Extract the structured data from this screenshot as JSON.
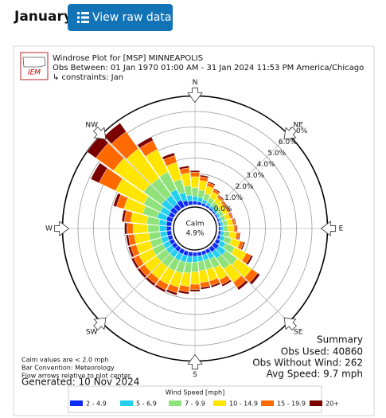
{
  "page": {
    "heading": "January",
    "button": "View raw data"
  },
  "chart_data": {
    "type": "windrose",
    "logo": "IEM",
    "title": "Windrose Plot for [MSP] MINNEAPOLIS",
    "subtitle": "Obs Between: 01 Jan 1970 01:00 AM - 31 Jan 2024 11:53 PM America/Chicago",
    "constraints": "↳ constraints: Jan",
    "compass": [
      "N",
      "NE",
      "E",
      "SE",
      "S",
      "SW",
      "W",
      "NW"
    ],
    "calm": {
      "label": "Calm",
      "value": 4.9,
      "value_label": "4.9%"
    },
    "rlim": [
      0,
      7
    ],
    "rticks": [
      {
        "value": 0,
        "label": "0.0%"
      },
      {
        "value": 1,
        "label": "1.0%"
      },
      {
        "value": 2,
        "label": "2.0%"
      },
      {
        "value": 3,
        "label": "3.0%"
      },
      {
        "value": 4,
        "label": "4.0%"
      },
      {
        "value": 5,
        "label": "5.0%"
      },
      {
        "value": 6,
        "label": "6.0%"
      },
      {
        "value": 7,
        "label": "7.0%"
      }
    ],
    "directions": [
      0,
      10,
      20,
      30,
      40,
      50,
      60,
      70,
      80,
      90,
      100,
      110,
      120,
      130,
      140,
      150,
      160,
      170,
      180,
      190,
      200,
      210,
      220,
      230,
      240,
      250,
      260,
      270,
      280,
      290,
      300,
      310,
      320,
      330,
      340,
      350
    ],
    "series": [
      {
        "name": "2 - 4.9",
        "color": "#0d2bf5",
        "values": [
          0.22,
          0.19,
          0.16,
          0.13,
          0.11,
          0.1,
          0.1,
          0.1,
          0.11,
          0.12,
          0.14,
          0.18,
          0.26,
          0.36,
          0.33,
          0.26,
          0.24,
          0.24,
          0.25,
          0.27,
          0.29,
          0.3,
          0.3,
          0.3,
          0.3,
          0.29,
          0.29,
          0.3,
          0.32,
          0.39,
          0.35,
          0.42,
          0.41,
          0.5,
          0.35,
          0.25
        ]
      },
      {
        "name": "5 - 6.9",
        "color": "#22cfee",
        "values": [
          0.33,
          0.29,
          0.24,
          0.2,
          0.17,
          0.15,
          0.15,
          0.15,
          0.17,
          0.18,
          0.21,
          0.27,
          0.39,
          0.54,
          0.5,
          0.39,
          0.36,
          0.36,
          0.38,
          0.41,
          0.44,
          0.45,
          0.45,
          0.45,
          0.45,
          0.44,
          0.44,
          0.45,
          0.48,
          0.59,
          0.59,
          0.7,
          0.68,
          0.75,
          0.53,
          0.38
        ]
      },
      {
        "name": "7 - 9.9",
        "color": "#8fe27a",
        "values": [
          0.55,
          0.48,
          0.4,
          0.33,
          0.28,
          0.25,
          0.25,
          0.25,
          0.28,
          0.3,
          0.35,
          0.45,
          0.65,
          0.9,
          0.83,
          0.65,
          0.6,
          0.6,
          0.63,
          0.68,
          0.73,
          0.75,
          0.75,
          0.75,
          0.75,
          0.73,
          0.73,
          0.75,
          0.8,
          0.98,
          1.18,
          1.4,
          1.36,
          1.25,
          0.88,
          0.63
        ]
      },
      {
        "name": "10 - 14.9",
        "color": "#ffe500",
        "values": [
          0.7,
          0.61,
          0.51,
          0.42,
          0.35,
          0.32,
          0.32,
          0.32,
          0.35,
          0.38,
          0.45,
          0.58,
          0.83,
          1.15,
          1.06,
          0.83,
          0.77,
          0.77,
          0.8,
          0.86,
          0.93,
          0.96,
          0.96,
          0.96,
          0.96,
          0.93,
          0.93,
          0.96,
          1.02,
          1.25,
          2.01,
          2.38,
          2.31,
          1.6,
          1.12,
          0.8
        ]
      },
      {
        "name": "15 - 19.9",
        "color": "#ff6a00",
        "values": [
          0.29,
          0.25,
          0.21,
          0.17,
          0.14,
          0.13,
          0.13,
          0.13,
          0.14,
          0.16,
          0.18,
          0.23,
          0.34,
          0.47,
          0.43,
          0.34,
          0.31,
          0.31,
          0.33,
          0.35,
          0.38,
          0.39,
          0.39,
          0.39,
          0.39,
          0.38,
          0.38,
          0.39,
          0.42,
          0.51,
          1.18,
          1.4,
          1.36,
          0.65,
          0.46,
          0.33
        ]
      },
      {
        "name": "20+",
        "color": "#7a0000",
        "values": [
          0.11,
          0.1,
          0.08,
          0.07,
          0.06,
          0.05,
          0.05,
          0.05,
          0.06,
          0.06,
          0.07,
          0.09,
          0.13,
          0.18,
          0.17,
          0.13,
          0.12,
          0.12,
          0.13,
          0.14,
          0.15,
          0.15,
          0.15,
          0.15,
          0.15,
          0.15,
          0.15,
          0.15,
          0.16,
          0.2,
          0.59,
          0.7,
          0.68,
          0.25,
          0.18,
          0.13
        ]
      }
    ],
    "legend_title": "Wind Speed [mph]",
    "summary": {
      "title": "Summary",
      "lines": [
        "Obs Used: 40860",
        "Obs Without Wind: 262",
        "Avg Speed: 9.7 mph"
      ]
    },
    "notes": [
      "Calm values are < 2.0 mph",
      "Bar Convention: Meteorology",
      "Flow arrows relative to plot center."
    ],
    "generated": "Generated: 10 Nov 2024"
  }
}
